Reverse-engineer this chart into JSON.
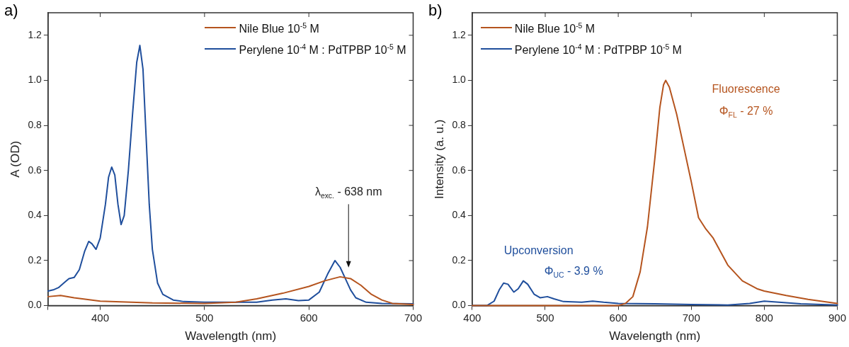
{
  "chart_data": [
    {
      "type": "line",
      "xlabel": "Wavelength (nm)",
      "ylabel": "A (OD)",
      "xlim": [
        350,
        700
      ],
      "xticks": [
        {
          "value": 350,
          "label": null
        },
        400,
        500,
        600,
        700
      ],
      "ylim": [
        0,
        1.3
      ],
      "yticks": [
        {
          "value": 0,
          "label": "0.0"
        },
        {
          "value": 0.2,
          "label": "0.2"
        },
        {
          "value": 0.4,
          "label": "0.4"
        },
        {
          "value": 0.6,
          "label": "0.6"
        },
        {
          "value": 0.8,
          "label": "0.8"
        },
        {
          "value": 1,
          "label": "1.0"
        },
        {
          "value": 1.2,
          "label": "1.2"
        }
      ],
      "legend": "top right",
      "marker": "none",
      "line_style": "solid",
      "annotations": [
        "a)",
        "λ$_{exc.}$ - 638 nm"
      ],
      "series": [
        {
          "name": "Nile Blue 10$^{-5}$ M",
          "color": "#b5541e",
          "x": [
            350,
            362,
            375,
            400,
            450,
            500,
            530,
            550,
            575,
            600,
            615,
            630,
            640,
            650,
            660,
            670,
            680,
            700
          ],
          "values": [
            0.04,
            0.045,
            0.035,
            0.02,
            0.012,
            0.01,
            0.015,
            0.03,
            0.055,
            0.085,
            0.11,
            0.128,
            0.12,
            0.09,
            0.05,
            0.025,
            0.01,
            0.005
          ]
        },
        {
          "name": "Perylene 10$^{-4}$ M : PdTPBP 10$^{-5}$ M",
          "color": "#1f4e9c",
          "x": [
            350,
            355,
            360,
            365,
            370,
            375,
            380,
            385,
            389,
            392,
            396,
            400,
            405,
            408,
            411,
            414,
            417,
            420,
            423,
            427,
            431,
            435,
            438,
            441,
            444,
            447,
            450,
            455,
            460,
            470,
            480,
            500,
            520,
            550,
            565,
            578,
            590,
            600,
            610,
            618,
            625,
            630,
            635,
            640,
            645,
            655,
            670,
            700
          ],
          "values": [
            0.065,
            0.07,
            0.08,
            0.1,
            0.12,
            0.125,
            0.16,
            0.24,
            0.285,
            0.275,
            0.25,
            0.3,
            0.45,
            0.57,
            0.615,
            0.58,
            0.45,
            0.36,
            0.4,
            0.6,
            0.85,
            1.08,
            1.155,
            1.05,
            0.75,
            0.45,
            0.25,
            0.1,
            0.05,
            0.025,
            0.018,
            0.015,
            0.015,
            0.015,
            0.025,
            0.03,
            0.022,
            0.025,
            0.06,
            0.14,
            0.2,
            0.17,
            0.12,
            0.07,
            0.035,
            0.015,
            0.01,
            0.008
          ]
        }
      ]
    },
    {
      "type": "line",
      "xlabel": "Wavelength (nm)",
      "ylabel": "Intensity (a. u.)",
      "xlim": [
        400,
        900
      ],
      "xticks": [
        400,
        500,
        600,
        700,
        800,
        900
      ],
      "ylim": [
        0,
        1.3
      ],
      "yticks": [
        {
          "value": 0,
          "label": "0.0"
        },
        {
          "value": 0.2,
          "label": "0.2"
        },
        {
          "value": 0.4,
          "label": "0.4"
        },
        {
          "value": 0.6,
          "label": "0.6"
        },
        {
          "value": 0.8,
          "label": "0.8"
        },
        {
          "value": 1,
          "label": "1.0"
        },
        {
          "value": 1.2,
          "label": "1.2"
        }
      ],
      "legend": "top left",
      "marker": "none",
      "line_style": "solid",
      "annotations": [
        "b)",
        "Fluorescence",
        "Φ$_{FL}$ - 27 %",
        "Upconversion",
        "Φ$_{UC}$ - 3.9 %"
      ],
      "series": [
        {
          "name": "Nile Blue 10$^{-5}$ M",
          "color": "#b5541e",
          "x": [
            400,
            600,
            610,
            620,
            630,
            640,
            650,
            657,
            662,
            665,
            670,
            680,
            690,
            700,
            710,
            720,
            730,
            740,
            750,
            770,
            790,
            800,
            830,
            860,
            900
          ],
          "values": [
            0,
            0,
            0.01,
            0.04,
            0.15,
            0.35,
            0.65,
            0.88,
            0.98,
            1.0,
            0.97,
            0.85,
            0.7,
            0.55,
            0.39,
            0.34,
            0.3,
            0.24,
            0.18,
            0.11,
            0.075,
            0.065,
            0.045,
            0.028,
            0.01
          ]
        },
        {
          "name": "Perylene 10$^{-4}$ M : PdTPBP 10$^{-5}$ M",
          "color": "#1f4e9c",
          "x": [
            400,
            420,
            430,
            437,
            443,
            449,
            457,
            463,
            470,
            476,
            485,
            493,
            503,
            512,
            525,
            550,
            565,
            580,
            600,
            650,
            700,
            750,
            780,
            800,
            820,
            850,
            900
          ],
          "values": [
            0,
            0,
            0.02,
            0.07,
            0.1,
            0.095,
            0.06,
            0.075,
            0.11,
            0.095,
            0.05,
            0.035,
            0.04,
            0.03,
            0.018,
            0.015,
            0.02,
            0.015,
            0.01,
            0.008,
            0.005,
            0.003,
            0.01,
            0.02,
            0.015,
            0.008,
            0.003
          ]
        }
      ]
    }
  ]
}
